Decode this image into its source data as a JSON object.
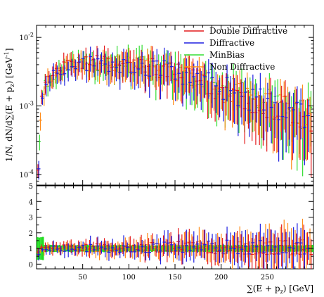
{
  "chart_data": [
    {
      "type": "scatter",
      "panel": "main",
      "ylabel": "1/N, dN/d∑(E + p_z) [GeV^-1]",
      "xlabel": "",
      "y_scale": "log",
      "xlim": [
        0,
        300
      ],
      "ylim": [
        7e-05,
        0.015
      ],
      "ytick_labels": [
        "10^-2",
        "10^-3",
        "10^-4"
      ],
      "legend_position": "top-right",
      "grid": false,
      "series": [
        {
          "name": "Double Diffractive",
          "color": "#e41a1c"
        },
        {
          "name": "Diffractive",
          "color": "#1f1fe0"
        },
        {
          "name": "MinBias",
          "color": "#33dd33"
        },
        {
          "name": "Non Diffractive",
          "color": "#ff8c1a"
        }
      ],
      "envelope": {
        "x": [
          2,
          5,
          10,
          20,
          30,
          40,
          60,
          80,
          100,
          120,
          140,
          160,
          180,
          200,
          220,
          240,
          260,
          280,
          296
        ],
        "y": [
          0.00015,
          0.0012,
          0.0022,
          0.003,
          0.0036,
          0.004,
          0.0042,
          0.0042,
          0.004,
          0.0037,
          0.0032,
          0.0027,
          0.0022,
          0.0018,
          0.0015,
          0.0012,
          0.001,
          0.00085,
          0.0007
        ]
      }
    },
    {
      "type": "scatter",
      "panel": "ratio",
      "xlabel": "∑(E + p_z) [GeV]",
      "ylabel": "",
      "xlim": [
        0,
        300
      ],
      "ylim": [
        -0.3,
        5
      ],
      "xtick_labels": [
        "50",
        "100",
        "150",
        "200",
        "250"
      ],
      "ytick_labels": [
        "0",
        "1",
        "2",
        "3",
        "4",
        "5"
      ],
      "band_color": "#22dd22",
      "reference_value": 1
    }
  ]
}
